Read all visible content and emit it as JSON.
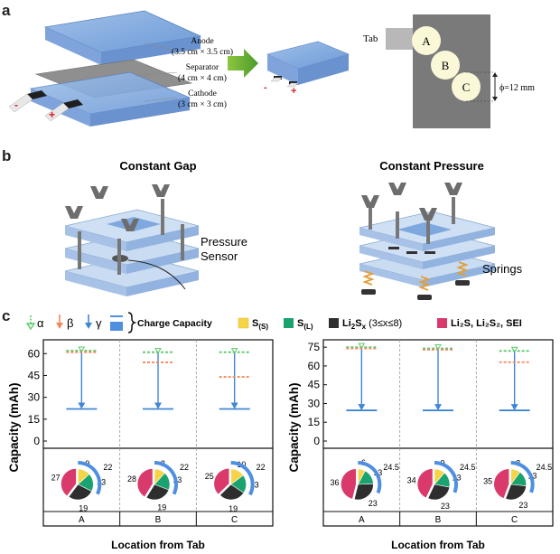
{
  "panels": {
    "a": "a",
    "b": "b",
    "c": "c"
  },
  "panel_a": {
    "anode_label": "Anode",
    "anode_size": "(3.5 cm × 3.5 cm)",
    "separator_label": "Separator",
    "separator_size": "(4 cm × 4 cm)",
    "cathode_label": "Cathode",
    "cathode_size": "(3 cm × 3 cm)",
    "minus": "-",
    "plus": "+",
    "tab_label": "Tab",
    "positions": [
      "A",
      "B",
      "C"
    ],
    "diameter": "ϕ=12 mm"
  },
  "panel_b": {
    "gap_title": "Constant Gap",
    "pressure_title": "Constant Pressure",
    "pressure_sensor": "Pressure\nSensor",
    "pressure_sensor_l1": "Pressure",
    "pressure_sensor_l2": "Sensor",
    "springs": "Springs"
  },
  "panel_c": {
    "legend": {
      "alpha": "α",
      "beta": "β",
      "gamma": "γ",
      "charge_capacity": "Charge Capacity",
      "s_solid": "S",
      "s_solid_sub": "(S)",
      "s_liquid": "S",
      "s_liquid_sub": "(L)",
      "li2sx": "Li",
      "li2sx_rest": "2S",
      "li2sx_sub": "x",
      "li2sx_range": " (3≤x≤8)",
      "li2s": "Li",
      "li2s_text": "Li₂S, Li₂S₂, SEI"
    },
    "colors": {
      "alpha": "#5cc96b",
      "beta": "#f08a5d",
      "gamma": "#3f86d6",
      "s_solid": "#f5d547",
      "s_liquid": "#1aa36f",
      "li2sx": "#2e2e2e",
      "li2s": "#d93a6b",
      "charge_arc": "#4f8fe0"
    }
  },
  "chart_data": [
    {
      "type": "bar",
      "panel": "constant gap",
      "ylabel": "Capacity (mAh)",
      "xlabel": "Location from Tab",
      "categories": [
        "A",
        "B",
        "C"
      ],
      "ylim": [
        0,
        67
      ],
      "yticks": [
        0,
        15,
        30,
        45,
        60
      ],
      "series": [
        {
          "name": "α",
          "values": [
            62,
            61,
            61
          ]
        },
        {
          "name": "β",
          "values": [
            61,
            54,
            44
          ]
        },
        {
          "name": "γ",
          "values": [
            22,
            22,
            22
          ]
        }
      ],
      "pies": [
        {
          "values": [
            9,
            13,
            19,
            27
          ],
          "charge": 22
        },
        {
          "values": [
            8,
            13,
            19,
            28
          ],
          "charge": 22
        },
        {
          "values": [
            10,
            13,
            19,
            25
          ],
          "charge": 22
        }
      ]
    },
    {
      "type": "bar",
      "panel": "constant pressure",
      "ylabel": "Capacity (mAh)",
      "xlabel": "Location from Tab",
      "categories": [
        "A",
        "B",
        "C"
      ],
      "ylim": [
        0,
        78
      ],
      "yticks": [
        0,
        15,
        30,
        45,
        60,
        75
      ],
      "series": [
        {
          "name": "α",
          "values": [
            75,
            74,
            72
          ]
        },
        {
          "name": "β",
          "values": [
            74,
            73,
            63
          ]
        },
        {
          "name": "γ",
          "values": [
            24.5,
            24.5,
            24.5
          ]
        }
      ],
      "pies": [
        {
          "values": [
            6,
            13,
            23,
            36
          ],
          "charge": 24.5
        },
        {
          "values": [
            9,
            13,
            23,
            34
          ],
          "charge": 24.5
        },
        {
          "values": [
            8,
            13,
            23,
            35
          ],
          "charge": 24.5
        }
      ]
    }
  ]
}
